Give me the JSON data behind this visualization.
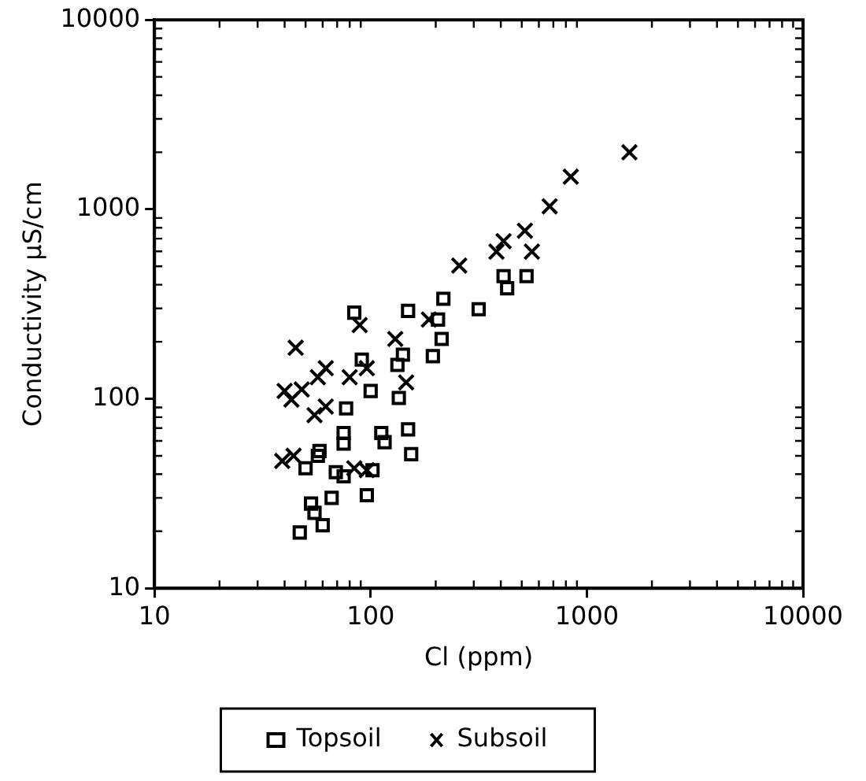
{
  "chart_data": {
    "type": "scatter",
    "xlabel": "Cl (ppm)",
    "ylabel": "Conductivity µS/cm",
    "log": "xy",
    "grid": false,
    "legend": "bottom",
    "xlim": [
      10,
      10000
    ],
    "xticks": [
      10,
      100,
      1000,
      10000
    ],
    "ylim": [
      10,
      10000
    ],
    "yticks": [
      10,
      100,
      1000,
      10000
    ],
    "series": [
      {
        "name": "Topsoil",
        "color": "#000000",
        "marker": "square",
        "x": [
          412,
          526,
          428,
          316,
          217,
          149,
          205,
          84,
          213,
          141,
          194,
          91,
          133,
          100,
          135,
          77,
          75,
          75,
          112,
          149,
          116,
          154,
          58,
          50,
          69,
          102,
          75,
          96,
          66,
          53,
          55,
          60,
          47,
          57
        ],
        "values": [
          444,
          444,
          383,
          297,
          337,
          291,
          262,
          285,
          207,
          171,
          168,
          161,
          151,
          110,
          101,
          89,
          66,
          58,
          66,
          69,
          59,
          51,
          53,
          43,
          41,
          42,
          39,
          31,
          30,
          28,
          25,
          21.5,
          19.7,
          50
        ]
      },
      {
        "name": "Subsoil",
        "color": "#000000",
        "marker": "cross",
        "x": [
          1574,
          843,
          673,
          517,
          412,
          382,
          557,
          257,
          45,
          89,
          186,
          130,
          62,
          96,
          80,
          57,
          40,
          48,
          43,
          55,
          62,
          146,
          39,
          44,
          84,
          96
        ],
        "values": [
          2000,
          1486,
          1037,
          771,
          679,
          598,
          598,
          505,
          186,
          245,
          262,
          207,
          145,
          145,
          130,
          130,
          110,
          112,
          99,
          82,
          91,
          122,
          47,
          50,
          43,
          42
        ]
      }
    ]
  }
}
